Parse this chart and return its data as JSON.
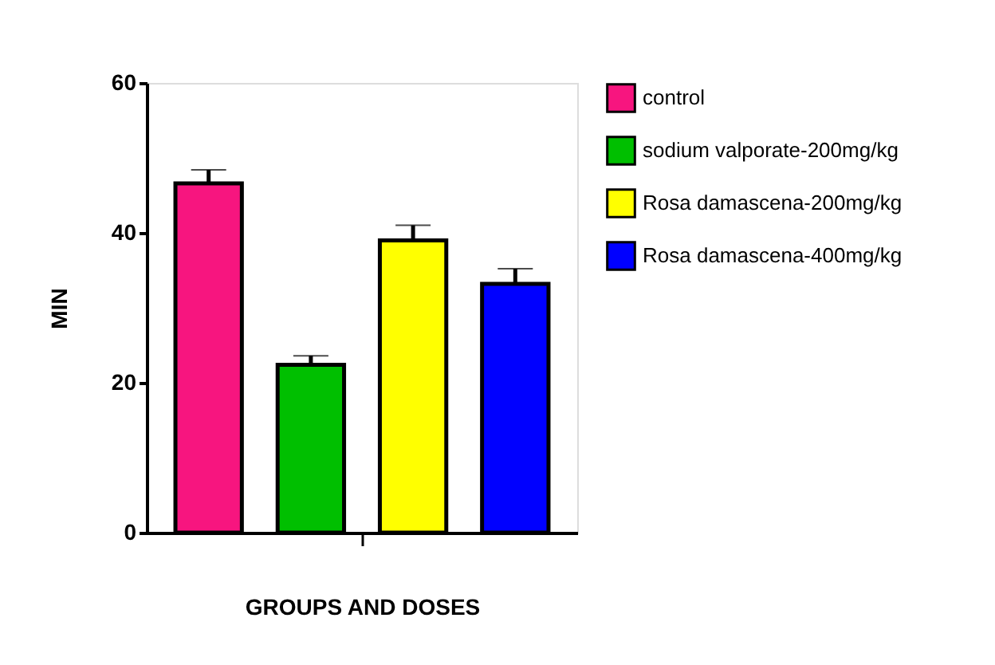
{
  "chart_data": {
    "type": "bar",
    "xlabel": "GROUPS AND DOSES",
    "ylabel": "MIN",
    "categories": [
      null
    ],
    "series": [
      {
        "name": "control",
        "color": "#f7157f",
        "values": [
          46.6
        ],
        "errors": [
          1.8
        ]
      },
      {
        "name": "sodium valporate-200mg/kg",
        "color": "#00bf00",
        "values": [
          22.4
        ],
        "errors": [
          1.2
        ]
      },
      {
        "name": "Rosa damascena-200mg/kg",
        "color": "#ffff00",
        "values": [
          39.0
        ],
        "errors": [
          2.0
        ]
      },
      {
        "name": "Rosa damascena-400mg/kg",
        "color": "#0000ff",
        "values": [
          33.2
        ],
        "errors": [
          2.0
        ]
      }
    ],
    "ylim": [
      0,
      60
    ],
    "yticks": [
      0,
      20,
      40,
      60
    ],
    "grid": false,
    "legend": "top right"
  }
}
